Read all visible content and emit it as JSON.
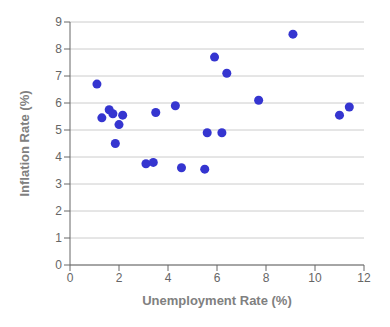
{
  "chart_data": {
    "type": "scatter",
    "xlabel": "Unemployment Rate (%)",
    "ylabel": "Inflation Rate (%)",
    "x": [
      1.1,
      1.3,
      1.6,
      1.75,
      2.0,
      2.15,
      1.85,
      3.1,
      3.4,
      3.5,
      4.3,
      5.6,
      5.9,
      6.2,
      6.4,
      7.7,
      9.1,
      11.0,
      11.4,
      5.5,
      4.55
    ],
    "values": [
      6.7,
      5.45,
      5.75,
      5.6,
      5.2,
      5.55,
      4.5,
      3.75,
      3.8,
      5.65,
      5.9,
      4.9,
      7.7,
      4.9,
      7.1,
      6.1,
      8.55,
      5.55,
      5.85,
      3.55,
      3.6
    ],
    "color": "#3535d0",
    "xlim": [
      0,
      12
    ],
    "ylim": [
      0,
      9
    ],
    "xticks": [
      0,
      2,
      4,
      6,
      8,
      10,
      12
    ],
    "yticks": [
      0,
      1,
      2,
      3,
      4,
      5,
      6,
      7,
      8,
      9
    ],
    "grid": "y"
  }
}
